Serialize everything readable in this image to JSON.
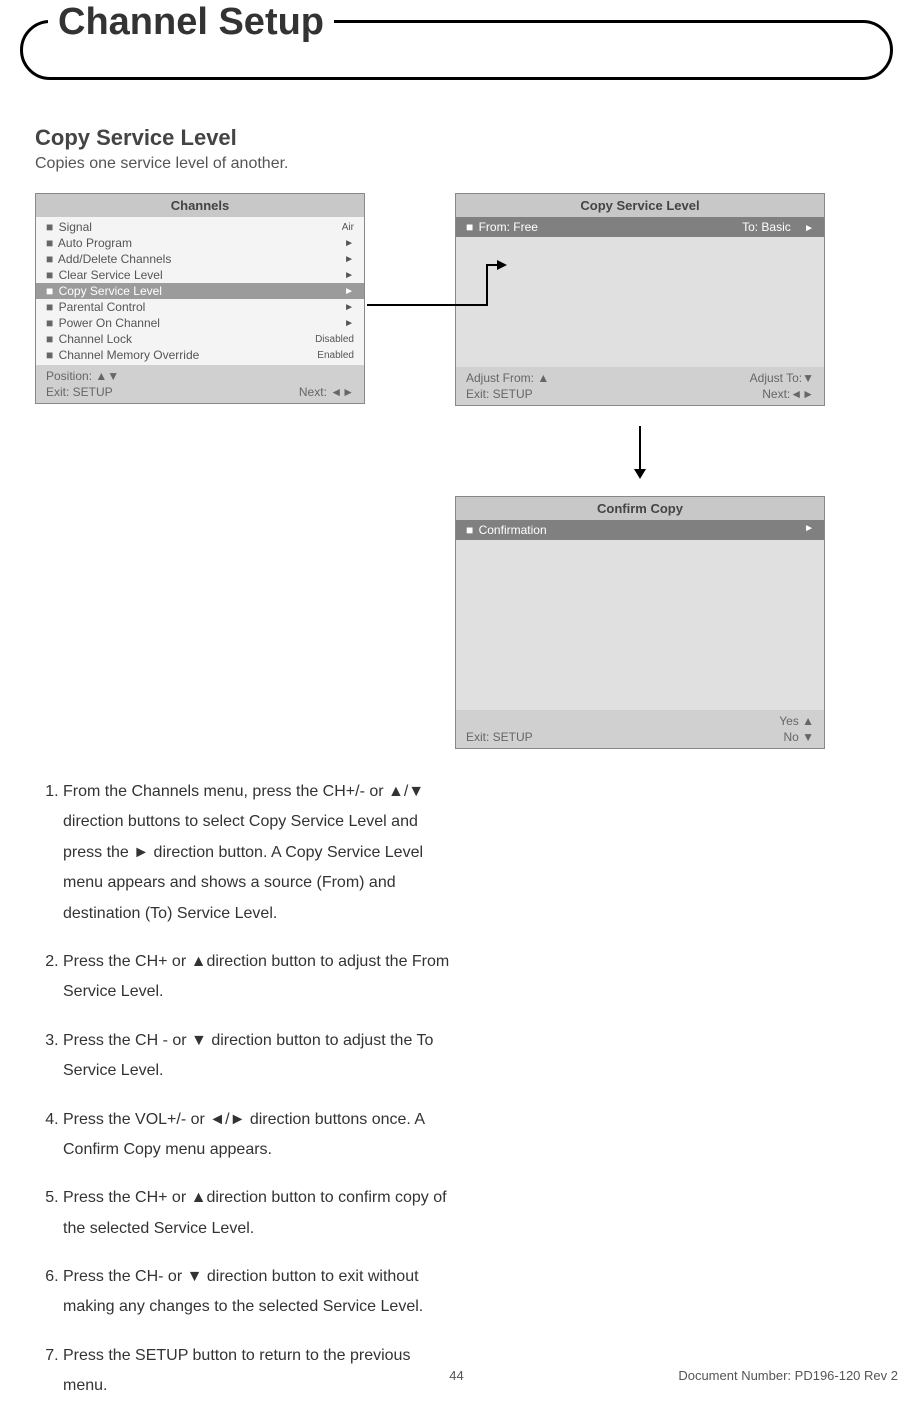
{
  "page": {
    "chapter_title": "Channel Setup",
    "section_title": "Copy Service Level",
    "section_sub": "Copies one service level of another.",
    "page_number": "44",
    "doc_number": "Document Number: PD196-120 Rev 2"
  },
  "colors": {
    "text": "#333333",
    "menu_header_bg": "#c8c8c8",
    "menu_body_bg": "#f4f4f4",
    "menu_selected_bg": "#9b9b9b",
    "menu_footer_bg": "#d0d0d0",
    "menu_copy_row_bg": "#808080"
  },
  "channels_menu": {
    "title": "Channels",
    "rows": [
      {
        "label": "Signal",
        "right": "Air",
        "selected": false
      },
      {
        "label": "Auto Program",
        "right": "►",
        "selected": false
      },
      {
        "label": "Add/Delete Channels",
        "right": "►",
        "selected": false
      },
      {
        "label": "Clear Service Level",
        "right": "►",
        "selected": false
      },
      {
        "label": "Copy Service Level",
        "right": "►",
        "selected": true
      },
      {
        "label": "Parental Control",
        "right": "►",
        "selected": false
      },
      {
        "label": "Power On Channel",
        "right": "►",
        "selected": false
      },
      {
        "label": "Channel Lock",
        "right": "Disabled",
        "selected": false
      },
      {
        "label": "Channel Memory Override",
        "right": "Enabled",
        "selected": false
      }
    ],
    "footer_left1": "Position: ▲▼",
    "footer_left2": "Exit: SETUP",
    "footer_right2": "Next: ◄►"
  },
  "copy_menu": {
    "title": "Copy Service Level",
    "from_label": "From: Free",
    "to_label": "To: Basic",
    "to_arrow": "►",
    "footer_left1": "Adjust From: ▲",
    "footer_left2": "Exit: SETUP",
    "footer_right1": "Adjust To:▼",
    "footer_right2": "Next:◄►"
  },
  "confirm_menu": {
    "title": "Confirm Copy",
    "row_label": "Confirmation",
    "row_arrow": "►",
    "footer_left2": "Exit: SETUP",
    "footer_right1": "Yes ▲",
    "footer_right2": "No ▼"
  },
  "steps": [
    "From the Channels menu, press the CH+/- or ▲/▼ direction buttons to select Copy Service Level and press the ► direction button. A Copy Service Level menu appears and shows a source (From) and destination (To) Service Level.",
    "Press the CH+ or ▲direction button to adjust the From Service Level.",
    "Press the CH - or ▼ direction button to adjust the To Service Level.",
    "Press the VOL+/- or ◄/► direction buttons once. A Confirm Copy menu appears.",
    "Press the CH+ or ▲direction button to confirm copy of the selected Service Level.",
    "Press the CH- or ▼ direction button to exit without making any changes to the selected Service Level.",
    "Press the SETUP button to return to the previous menu."
  ]
}
